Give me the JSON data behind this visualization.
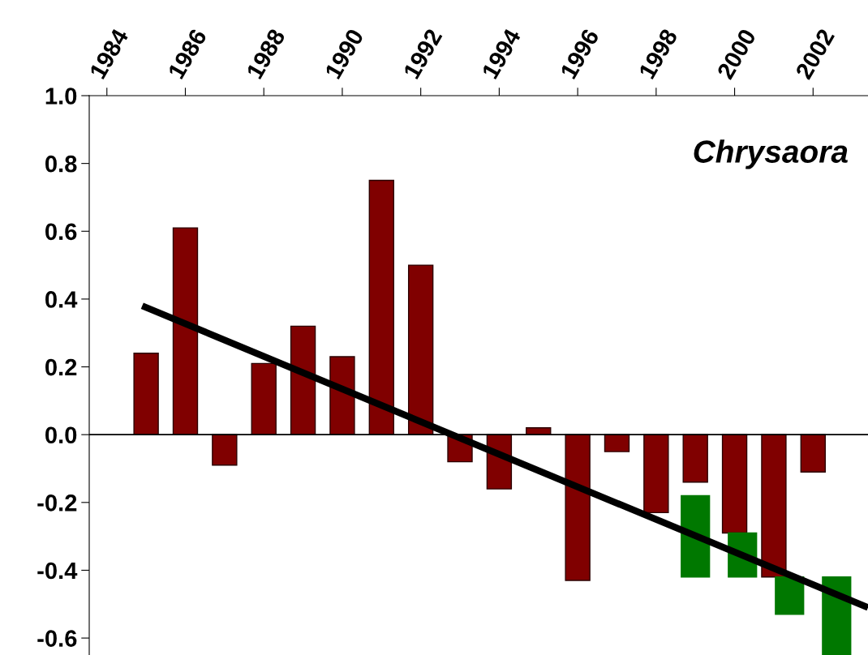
{
  "chart_data": {
    "type": "bar",
    "annotations": [
      "Chrysaora"
    ],
    "x": [
      1985,
      1986,
      1987,
      1988,
      1989,
      1990,
      1991,
      1992,
      1993,
      1994,
      1995,
      1996,
      1997,
      1998,
      1999,
      2000,
      2001,
      2002
    ],
    "series": [
      {
        "color": "#800000",
        "values": [
          0.24,
          0.61,
          -0.09,
          0.21,
          0.32,
          0.23,
          0.75,
          0.5,
          -0.08,
          -0.16,
          0.02,
          -0.43,
          -0.05,
          -0.23,
          -0.14,
          -0.29,
          -0.42,
          -0.11
        ]
      },
      {
        "type": "bar",
        "color": "#007800",
        "x": [
          1999.0,
          2000.2,
          2001.4,
          2002.6
        ],
        "base": [
          -0.42,
          -0.42,
          -0.42,
          -0.42
        ],
        "values": [
          0.24,
          0.13,
          -0.11,
          -0.23
        ]
      },
      {
        "type": "line",
        "color": "#000000",
        "x": [
          1984.9,
          2003.4
        ],
        "values": [
          0.38,
          -0.51
        ]
      }
    ],
    "xlim": [
      1983.55,
      2003.4
    ],
    "xticks": [
      1984,
      1986,
      1988,
      1990,
      1992,
      1994,
      1996,
      1998,
      2000,
      2002
    ],
    "ylim": [
      -0.65,
      1.0
    ],
    "yticks": [
      {
        "value": 1,
        "label": "1.0"
      },
      0.8,
      0.6,
      0.4,
      0.2,
      {
        "value": 0,
        "label": "0.0"
      },
      -0.2,
      -0.4,
      -0.6
    ],
    "ref_lines": [
      {
        "axis": "y",
        "value": 0,
        "color": "#000000"
      }
    ],
    "grid": false,
    "legend": false
  }
}
